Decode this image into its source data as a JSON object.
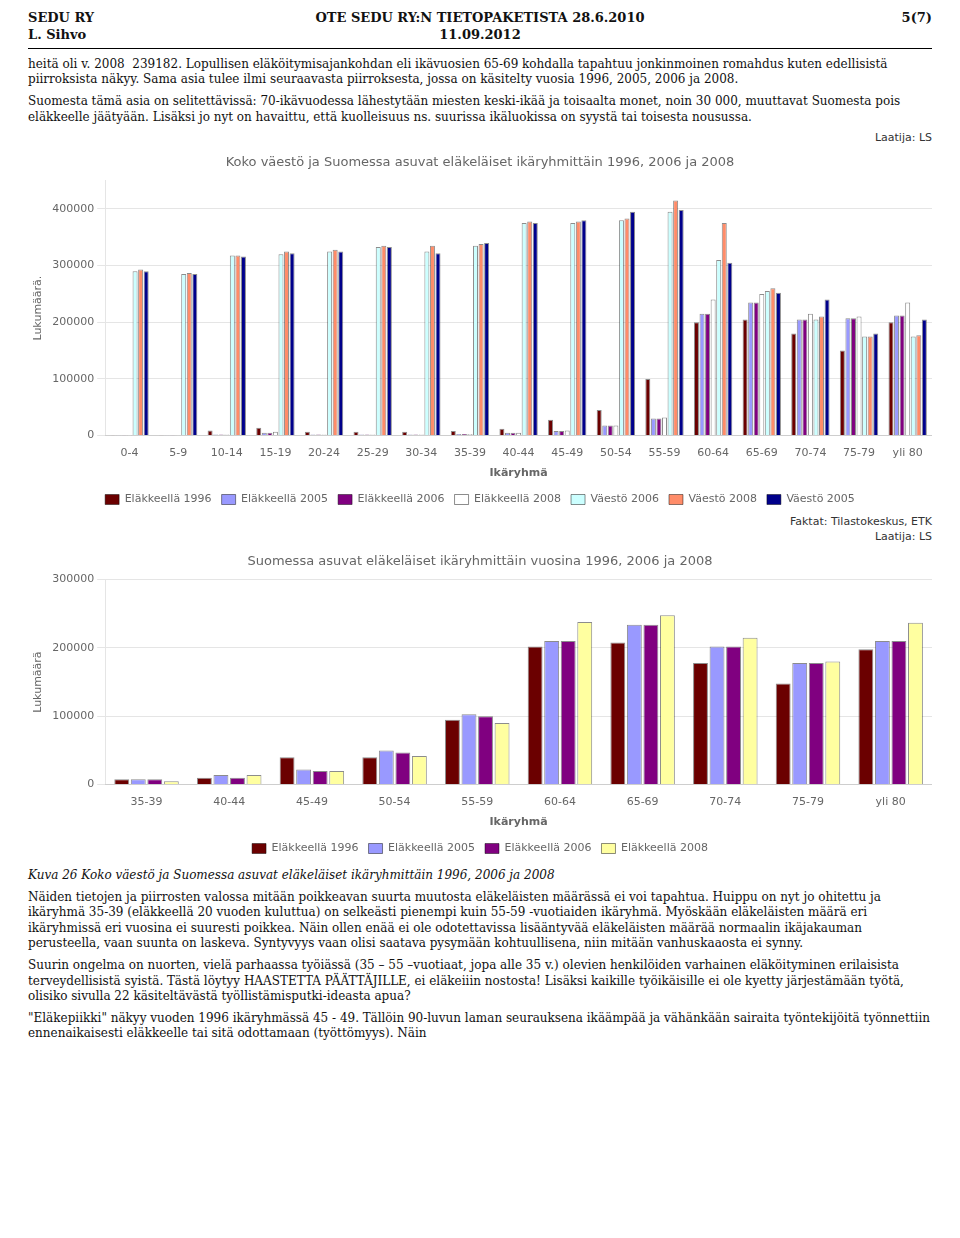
{
  "header": [
    [
      "SEDU RY",
      "L. Sihvo"
    ],
    [
      "OTE SEDU RY:N TIETOPAKETISTA 28.6.2010",
      "11.09.2012"
    ],
    [
      "5(7)"
    ]
  ],
  "intro_text": [
    "heitä oli v. 2008  239182. Lopullisen eläköitymisajankohdan eli ikävuosien 65-69 kohdalla tapahtuu jonkinmoinen romahdus kuten edellisistä piirroksista näkyy. Sama asia tulee ilmi seuraavasta piirroksesta, jossa on käsitelty vuosia 1996, 2005, 2006 ja 2008.",
    "Suomesta tämä asia on selitettävissä: 70-ikävuodessa lähestytään miesten keski-ikää ja toisaalta monet, noin 30 000, muuttavat Suomesta pois eläkkeelle jäätyään. Lisäksi jo nyt on havaittu, että kuolleisuus ns. suurissa ikäluokissa on syystä tai toisesta nousussa."
  ],
  "chart_data": [
    {
      "type": "bar",
      "title": "Koko väestö ja Suomessa asuvat eläkeläiset ikäryhmittäin 1996, 2006 ja 2008",
      "xlabel": "Ikäryhmä",
      "ylabel": "Lukumäärä.",
      "annotations": [
        "Laatija: LS",
        "Faktat: Tilastokeskus, ETK"
      ],
      "categories": [
        "0-4",
        "5-9",
        "10-14",
        "15-19",
        "20-24",
        "25-29",
        "30-34",
        "35-39",
        "40-44",
        "45-49",
        "50-54",
        "55-59",
        "60-64",
        "65-69",
        "70-74",
        "75-79",
        "yli 80"
      ],
      "series": [
        {
          "name": "Eläkkeellä 1996",
          "color": "#6B0000",
          "values": [
            500,
            400,
            9000,
            14000,
            7000,
            7000,
            7000,
            8000,
            12000,
            28000,
            45000,
            100000,
            200000,
            205000,
            180000,
            150000,
            200000
          ]
        },
        {
          "name": "Eläkkeellä 2005",
          "color": "#9999FF",
          "values": [
            500,
            400,
            2000,
            5000,
            2000,
            2000,
            2000,
            3000,
            5000,
            8000,
            18000,
            30000,
            215000,
            235000,
            205000,
            207000,
            212000
          ]
        },
        {
          "name": "Eläkkeellä 2006",
          "color": "#800080",
          "values": [
            500,
            400,
            2000,
            5000,
            2000,
            2000,
            2000,
            3000,
            5000,
            8000,
            18000,
            30000,
            215000,
            235000,
            205000,
            207000,
            212000
          ]
        },
        {
          "name": "Eläkkeellä 2008",
          "color": "#FFFFFF",
          "values": [
            500,
            400,
            2000,
            7000,
            2000,
            2000,
            2000,
            3000,
            5000,
            9000,
            18000,
            32000,
            240000,
            250000,
            215000,
            210000,
            235000
          ]
        },
        {
          "name": "Väestö 2006",
          "color": "#CCFFFF",
          "values": [
            290000,
            285000,
            318000,
            320000,
            325000,
            333000,
            325000,
            335000,
            375000,
            375000,
            380000,
            395000,
            310000,
            255000,
            205000,
            175000,
            175000
          ]
        },
        {
          "name": "Väestö 2008",
          "color": "#FF8C69",
          "values": [
            293000,
            287000,
            318000,
            325000,
            328000,
            335000,
            335000,
            338000,
            378000,
            378000,
            383000,
            415000,
            375000,
            260000,
            210000,
            175000,
            177000
          ]
        },
        {
          "name": "Väestö 2005",
          "color": "#00008B",
          "values": [
            290000,
            285000,
            316000,
            322000,
            325000,
            333000,
            322000,
            340000,
            375000,
            380000,
            395000,
            398000,
            305000,
            252000,
            240000,
            180000,
            205000
          ]
        }
      ],
      "ylim": [
        0,
        450000
      ],
      "yticks": [
        0,
        100000,
        200000,
        300000,
        400000
      ],
      "grid": true,
      "legend": "bottom"
    },
    {
      "type": "bar",
      "title": "Suomessa asuvat eläkeläiset ikäryhmittäin vuosina 1996, 2006 ja 2008",
      "xlabel": "Ikäryhmä",
      "ylabel": "Lukumäärä",
      "annotations": [
        "Laatija: LS"
      ],
      "categories": [
        "35-39",
        "40-44",
        "45-49",
        "50-54",
        "55-59",
        "60-64",
        "65-69",
        "70-74",
        "75-79",
        "yli 80"
      ],
      "series": [
        {
          "name": "Eläkkeellä 1996",
          "color": "#6B0000",
          "values": [
            8000,
            10000,
            40000,
            40000,
            95000,
            202000,
            208000,
            178000,
            148000,
            198000
          ]
        },
        {
          "name": "Eläkkeellä 2005",
          "color": "#9999FF",
          "values": [
            8000,
            14000,
            22000,
            50000,
            103000,
            210000,
            234000,
            202000,
            178000,
            210000
          ]
        },
        {
          "name": "Eläkkeellä 2006",
          "color": "#800080",
          "values": [
            8000,
            10000,
            20000,
            47000,
            100000,
            210000,
            234000,
            202000,
            178000,
            210000
          ]
        },
        {
          "name": "Eläkkeellä 2008",
          "color": "#FFFFA0",
          "values": [
            5000,
            14000,
            20000,
            42000,
            90000,
            238000,
            248000,
            215000,
            180000,
            237000
          ]
        }
      ],
      "ylim": [
        0,
        300000
      ],
      "yticks": [
        0,
        100000,
        200000,
        300000
      ],
      "grid": true,
      "legend": "bottom"
    }
  ],
  "caption": "Kuva 26 Koko väestö ja Suomessa asuvat eläkeläiset ikäryhmittäin 1996, 2006 ja 2008",
  "closing_text": [
    "Näiden tietojen ja piirrosten valossa mitään poikkeavan suurta muutosta eläkeläisten määrässä ei voi tapahtua. Huippu on nyt jo ohitettu ja ikäryhmä 35-39 (eläkkeellä 20 vuoden kuluttua) on selkeästi pienempi kuin 55-59 -vuotiaiden ikäryhmä. Myöskään eläkeläisten määrä eri ikäryhmissä eri vuosina ei suuresti poikkea. Näin ollen enää ei ole odotettavissa lisääntyvää eläkeläisten määrää normaalin ikäjakauman perusteella, vaan suunta on laskeva. Syntyvyys vaan olisi saatava pysymään kohtuullisena, niin mitään vanhuskaaosta ei synny.",
    "Suurin ongelma on nuorten, vielä parhaassa työiässä (35 – 55 –vuotiaat, jopa alle 35 v.) olevien henkilöiden varhainen eläköityminen erilaisista terveydellisistä syistä. Tästä löytyy HAASTETTA PÄÄTTÄJILLE, ei eläkeiiin nostosta! Lisäksi kaikille työikäisille ei ole kyetty järjestämään työtä, olisiko sivulla 22 käsiteltävästä työllistämisputki-ideasta apua?",
    "\"Eläkepiikki\" näkyy vuoden 1996 ikäryhmässä 45 - 49. Tällöin 90-luvun laman seurauksena ikäämpää ja vähänkään sairaita työntekijöitä työnnettiin ennenaikaisesti eläkkeelle tai sitä odottamaan (työttömyys). Näin"
  ]
}
